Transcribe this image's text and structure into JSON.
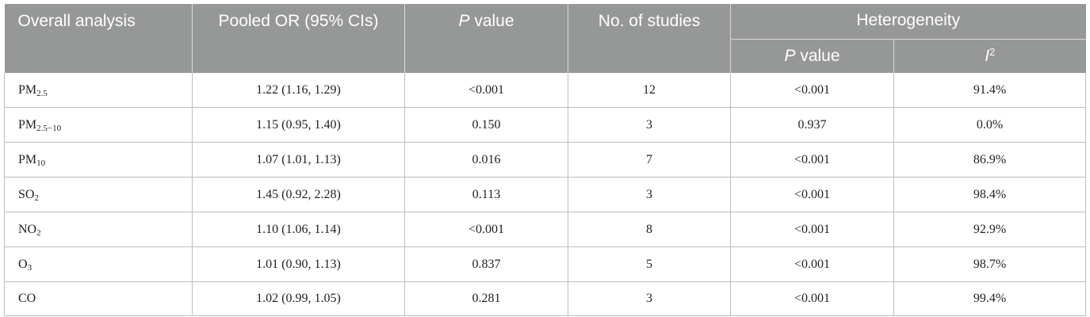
{
  "table": {
    "headers": {
      "overall_analysis": "Overall analysis",
      "pooled_or": "Pooled OR (95% CIs)",
      "p_value_italic": "P",
      "p_value_rest": " value",
      "no_studies": "No. of studies",
      "heterogeneity": "Heterogeneity",
      "het_p_italic": "P",
      "het_p_rest": " value",
      "i2_base": "I",
      "i2_sup": "2"
    },
    "rows": [
      {
        "pollutant": "PM",
        "sub": "2.5",
        "or": "1.22 (1.16, 1.29)",
        "p": "<0.001",
        "n": "12",
        "het_p": "<0.001",
        "i2": "91.4%"
      },
      {
        "pollutant": "PM",
        "sub": "2.5−10",
        "or": "1.15 (0.95, 1.40)",
        "p": "0.150",
        "n": "3",
        "het_p": "0.937",
        "i2": "0.0%"
      },
      {
        "pollutant": "PM",
        "sub": "10",
        "or": "1.07 (1.01, 1.13)",
        "p": "0.016",
        "n": "7",
        "het_p": "<0.001",
        "i2": "86.9%"
      },
      {
        "pollutant": "SO",
        "sub": "2",
        "or": "1.45 (0.92, 2.28)",
        "p": "0.113",
        "n": "3",
        "het_p": "<0.001",
        "i2": "98.4%"
      },
      {
        "pollutant": "NO",
        "sub": "2",
        "or": "1.10 (1.06, 1.14)",
        "p": "<0.001",
        "n": "8",
        "het_p": "<0.001",
        "i2": "92.9%"
      },
      {
        "pollutant": "O",
        "sub": "3",
        "or": "1.01 (0.90, 1.13)",
        "p": "0.837",
        "n": "5",
        "het_p": "<0.001",
        "i2": "98.7%"
      },
      {
        "pollutant": "CO",
        "sub": "",
        "or": "1.02 (0.99, 1.05)",
        "p": "0.281",
        "n": "3",
        "het_p": "<0.001",
        "i2": "99.4%"
      }
    ]
  },
  "colors": {
    "header_bg": "#969797",
    "header_text": "#ffffff",
    "border": "#bdbdbd"
  }
}
